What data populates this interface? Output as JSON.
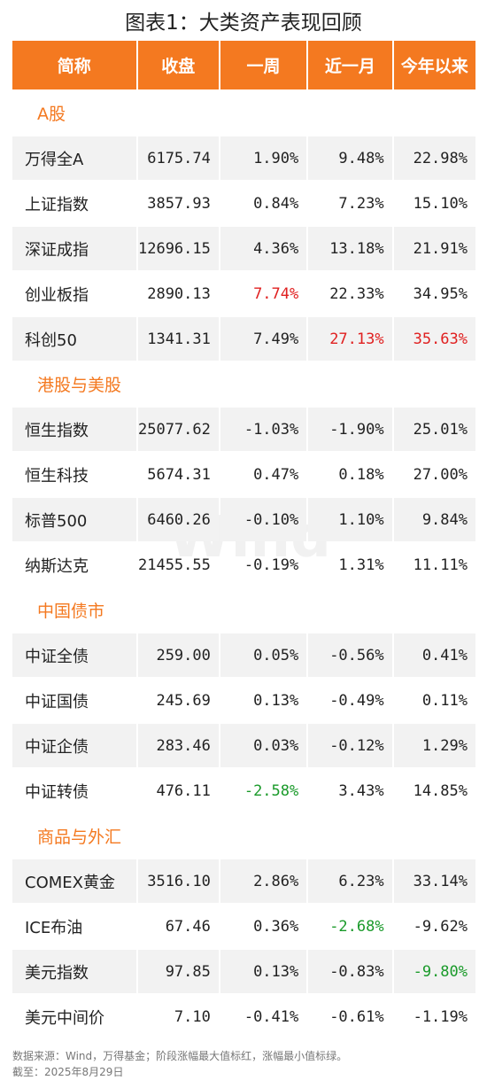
{
  "title": "图表1：大类资产表现回顾",
  "header": [
    "简称",
    "收盘",
    "一周",
    "近一月",
    "今年以来"
  ],
  "sections": [
    {
      "name": "A股",
      "rows": [
        [
          "万得全A",
          "6175.74",
          "1.90%",
          "9.48%",
          "22.98%"
        ],
        [
          "上证指数",
          "3857.93",
          "0.84%",
          "7.23%",
          "15.10%"
        ],
        [
          "深证成指",
          "12696.15",
          "4.36%",
          "13.18%",
          "21.91%"
        ],
        [
          "创业板指",
          "2890.13",
          {
            "text": "7.74%",
            "color": "#e02020"
          },
          "22.33%",
          "34.95%"
        ],
        [
          "科创50",
          "1341.31",
          "7.49%",
          {
            "text": "27.13%",
            "color": "#e02020"
          },
          {
            "text": "35.63%",
            "color": "#e02020"
          }
        ]
      ]
    },
    {
      "name": "港股与美股",
      "rows": [
        [
          "恒生指数",
          "25077.62",
          "-1.03%",
          "-1.90%",
          "25.01%"
        ],
        [
          "恒生科技",
          "5674.31",
          "0.47%",
          "0.18%",
          "27.00%"
        ],
        [
          "标普500",
          "6460.26",
          "-0.10%",
          "1.10%",
          "9.84%"
        ],
        [
          "纳斯达克",
          "21455.55",
          "-0.19%",
          "1.31%",
          "11.11%"
        ]
      ]
    },
    {
      "name": "中国债市",
      "rows": [
        [
          "中证全债",
          "259.00",
          "0.05%",
          "-0.56%",
          "0.41%"
        ],
        [
          "中证国债",
          "245.69",
          "0.13%",
          "-0.49%",
          "0.11%"
        ],
        [
          "中证企债",
          "283.46",
          "0.03%",
          "-0.12%",
          "1.29%"
        ],
        [
          "中证转债",
          "476.11",
          {
            "text": "-2.58%",
            "color": "#1a9a2a"
          },
          "3.43%",
          "14.85%"
        ]
      ]
    },
    {
      "name": "商品与外汇",
      "rows": [
        [
          "COMEX黄金",
          "3516.10",
          "2.86%",
          "6.23%",
          "33.14%"
        ],
        [
          "ICE布油",
          "67.46",
          "0.36%",
          {
            "text": "-2.68%",
            "color": "#1a9a2a"
          },
          "-9.62%"
        ],
        [
          "美元指数",
          "97.85",
          "0.13%",
          "-0.83%",
          {
            "text": "-9.80%",
            "color": "#1a9a2a"
          }
        ],
        [
          "美元中间价",
          "7.10",
          "-0.41%",
          "-0.61%",
          "-1.19%"
        ]
      ]
    }
  ],
  "watermark": "Wind",
  "notes": [
    "数据来源：Wind，万得基金；阶段涨幅最大值标红，涨幅最小值标绿。",
    "截至：2025年8月29日"
  ]
}
